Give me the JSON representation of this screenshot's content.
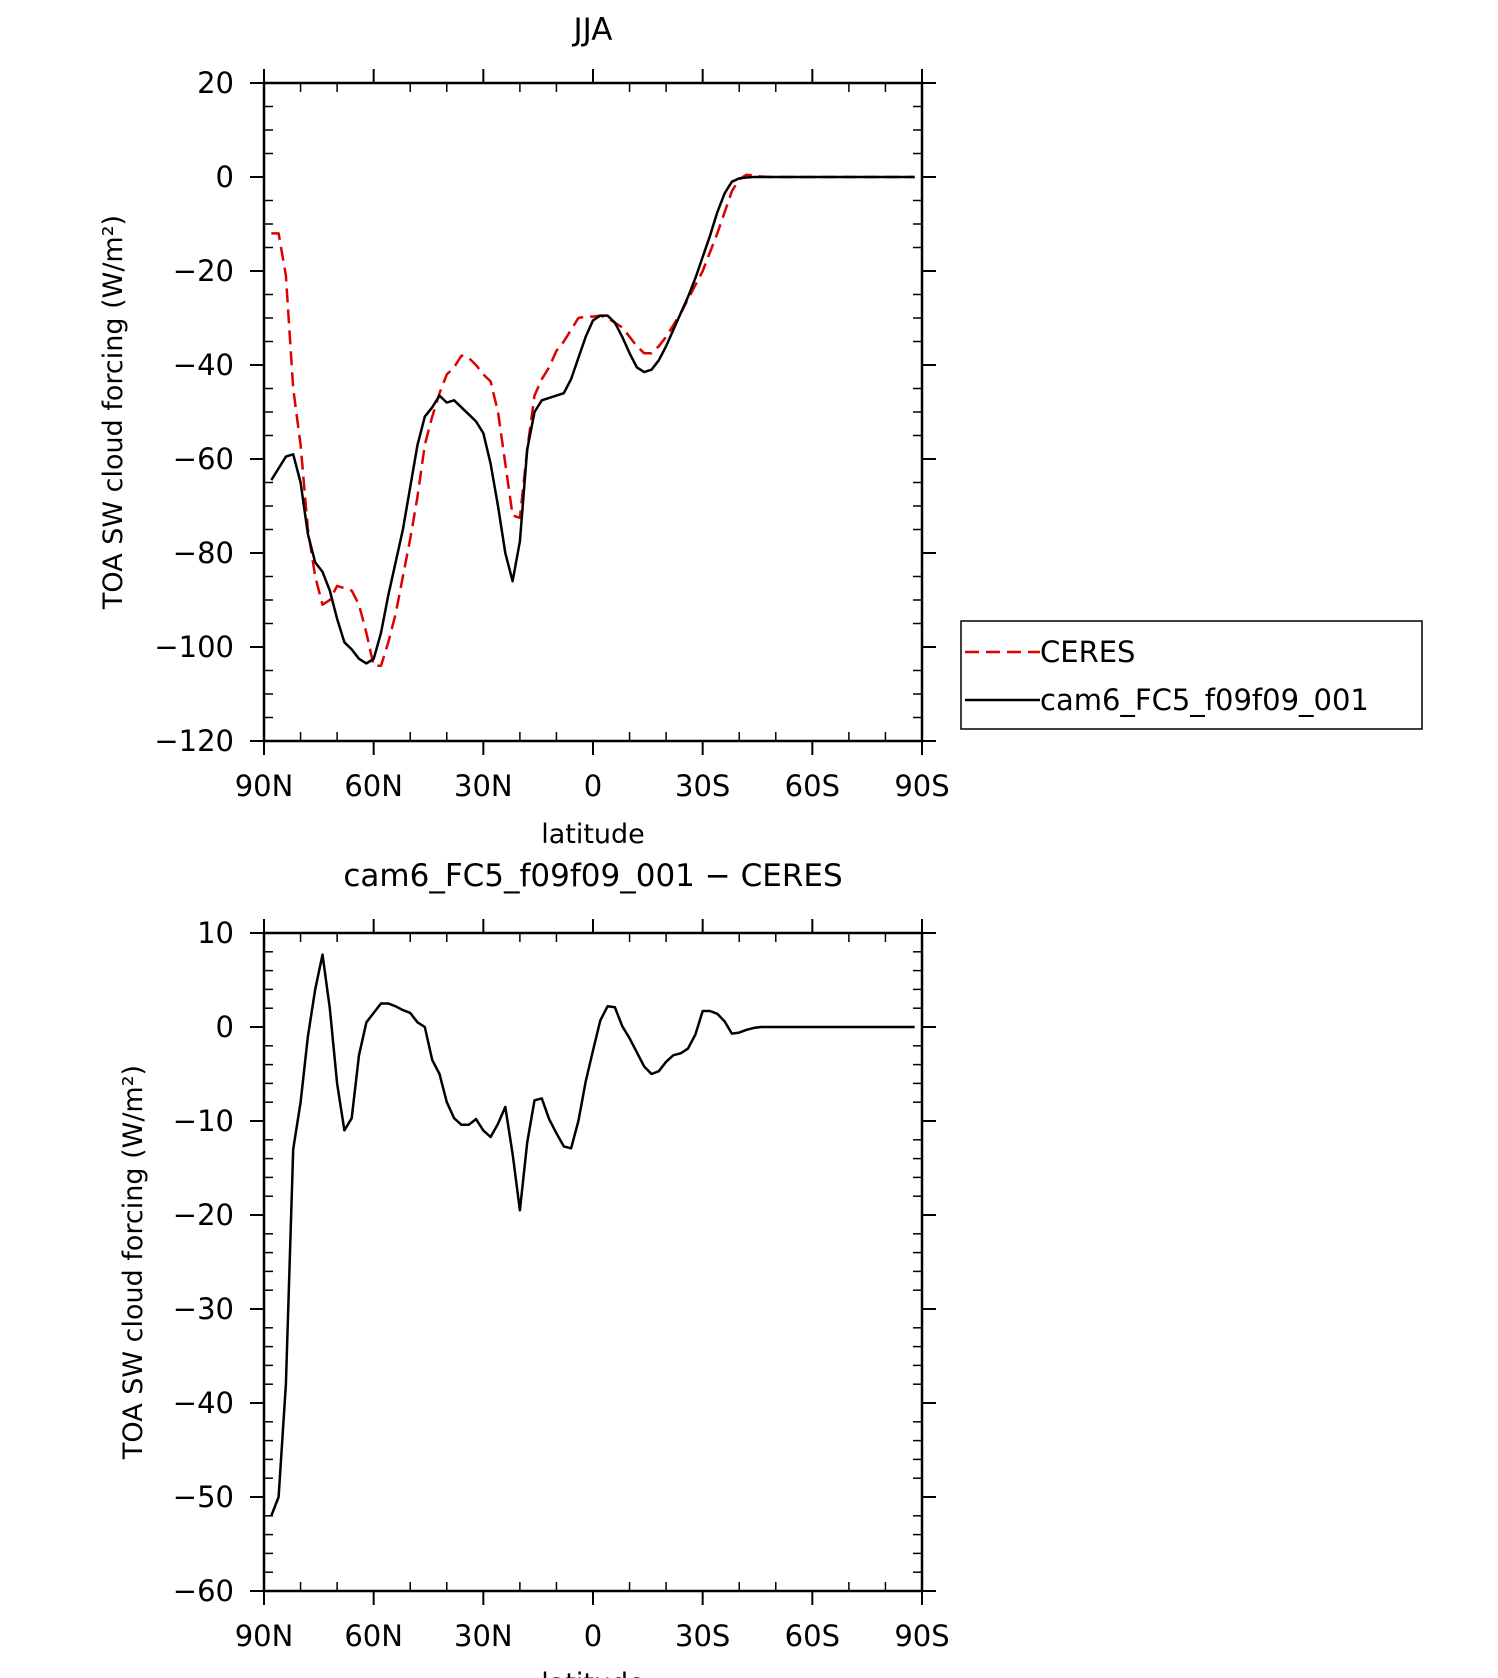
{
  "chart_data": [
    {
      "type": "line",
      "title": "JJA",
      "xlabel": "latitude",
      "ylabel": "TOA SW cloud forcing (W/m²)",
      "xlim": [
        90,
        -90
      ],
      "ylim": [
        -120,
        20
      ],
      "x_ticks": [
        90,
        60,
        30,
        0,
        -30,
        -60,
        -90
      ],
      "x_tick_labels": [
        "90N",
        "60N",
        "30N",
        "0",
        "30S",
        "60S",
        "90S"
      ],
      "y_ticks": [
        20,
        0,
        -20,
        -40,
        -60,
        -80,
        -100,
        -120
      ],
      "y_tick_labels": [
        "20",
        "0",
        "−20",
        "−40",
        "−60",
        "−80",
        "−100",
        "−120"
      ],
      "legend": {
        "position": "right",
        "entries": [
          "CERES",
          "cam6_FC5_f09f09_001"
        ]
      },
      "series": [
        {
          "name": "CERES",
          "color": "#dd0000",
          "dash": "dashed",
          "x": [
            88,
            86,
            84,
            82,
            80,
            78,
            76,
            74,
            72,
            70,
            68,
            66,
            64,
            62,
            60,
            58,
            56,
            54,
            52,
            50,
            48,
            46,
            44,
            42,
            40,
            38,
            36,
            34,
            32,
            30,
            28,
            26,
            24,
            22,
            20,
            18,
            16,
            14,
            12,
            10,
            8,
            6,
            4,
            2,
            0,
            -2,
            -4,
            -6,
            -8,
            -10,
            -12,
            -14,
            -16,
            -18,
            -20,
            -22,
            -24,
            -26,
            -28,
            -30,
            -32,
            -34,
            -36,
            -38,
            -40,
            -42,
            -44,
            -46,
            -48,
            -50,
            -52,
            -54,
            -56,
            -58,
            -60,
            -62,
            -64,
            -66,
            -68,
            -70,
            -72,
            -74,
            -76,
            -78,
            -80,
            -82,
            -84,
            -86,
            -88
          ],
          "y": [
            -12,
            -12,
            -21,
            -45,
            -57,
            -75,
            -85,
            -91,
            -90,
            -87,
            -87.5,
            -88,
            -91,
            -97,
            -104,
            -104,
            -99,
            -93,
            -85,
            -77,
            -68,
            -57,
            -51,
            -46,
            -42,
            -40.5,
            -38,
            -38.5,
            -40,
            -42,
            -43.5,
            -50,
            -61,
            -72,
            -72.5,
            -58,
            -46.5,
            -43,
            -40.5,
            -37,
            -35,
            -32.5,
            -30,
            -29.7,
            -29.7,
            -29.5,
            -30,
            -31,
            -32,
            -34,
            -36,
            -37.5,
            -37.5,
            -36,
            -34,
            -31.5,
            -29,
            -26,
            -23,
            -20,
            -16,
            -12,
            -7.5,
            -3,
            -0.5,
            0.5,
            0.3,
            0.1,
            0,
            0,
            0,
            0,
            0,
            0,
            0,
            0,
            0,
            0,
            0,
            0,
            0,
            0,
            0,
            0,
            0,
            0,
            0,
            0,
            0
          ]
        },
        {
          "name": "cam6_FC5_f09f09_001",
          "color": "#000000",
          "dash": "solid",
          "x": [
            88,
            86,
            84,
            82,
            80,
            78,
            76,
            74,
            72,
            70,
            68,
            66,
            64,
            62,
            60,
            58,
            56,
            54,
            52,
            50,
            48,
            46,
            44,
            42,
            40,
            38,
            36,
            34,
            32,
            30,
            28,
            26,
            24,
            22,
            20,
            18,
            16,
            14,
            12,
            10,
            8,
            6,
            4,
            2,
            0,
            -2,
            -4,
            -6,
            -8,
            -10,
            -12,
            -14,
            -16,
            -18,
            -20,
            -22,
            -24,
            -26,
            -28,
            -30,
            -32,
            -34,
            -36,
            -38,
            -40,
            -42,
            -44,
            -46,
            -48,
            -50,
            -52,
            -54,
            -56,
            -58,
            -60,
            -62,
            -64,
            -66,
            -68,
            -70,
            -72,
            -74,
            -76,
            -78,
            -80,
            -82,
            -84,
            -86,
            -88
          ],
          "y": [
            -64.5,
            -62,
            -59.5,
            -59,
            -65,
            -76,
            -82,
            -84,
            -88,
            -94,
            -99,
            -100.5,
            -102.5,
            -103.5,
            -102.5,
            -97,
            -89,
            -82,
            -75,
            -66,
            -57,
            -51,
            -49,
            -46.5,
            -48,
            -47.5,
            -49,
            -50.5,
            -52,
            -54.5,
            -61,
            -70,
            -80,
            -86,
            -77.5,
            -58,
            -50,
            -47.5,
            -47,
            -46.5,
            -46,
            -43,
            -38.5,
            -34,
            -30.5,
            -29.5,
            -29.5,
            -31,
            -34,
            -37.5,
            -40.5,
            -41.5,
            -41,
            -39,
            -36,
            -32.5,
            -29,
            -25.5,
            -21.5,
            -17,
            -12.5,
            -7.5,
            -3.5,
            -1,
            -0.3,
            -0.1,
            0,
            0,
            0,
            0,
            0,
            0,
            0,
            0,
            0,
            0,
            0,
            0,
            0,
            0,
            0,
            0,
            0,
            0,
            0,
            0,
            0,
            0,
            0
          ]
        }
      ]
    },
    {
      "type": "line",
      "title": "cam6_FC5_f09f09_001 − CERES",
      "xlabel": "latitude",
      "ylabel": "TOA SW cloud forcing (W/m²)",
      "xlim": [
        90,
        -90
      ],
      "ylim": [
        -60,
        10
      ],
      "x_ticks": [
        90,
        60,
        30,
        0,
        -30,
        -60,
        -90
      ],
      "x_tick_labels": [
        "90N",
        "60N",
        "30N",
        "0",
        "30S",
        "60S",
        "90S"
      ],
      "y_ticks": [
        10,
        0,
        -10,
        -20,
        -30,
        -40,
        -50,
        -60
      ],
      "y_tick_labels": [
        "10",
        "0",
        "−10",
        "−20",
        "−30",
        "−40",
        "−50",
        "−60"
      ],
      "series": [
        {
          "color": "#000000",
          "dash": "solid",
          "x": [
            88,
            86,
            84,
            82,
            80,
            78,
            76,
            74,
            72,
            70,
            68,
            66,
            64,
            62,
            60,
            58,
            56,
            54,
            52,
            50,
            48,
            46,
            44,
            42,
            40,
            38,
            36,
            34,
            32,
            30,
            28,
            26,
            24,
            22,
            20,
            18,
            16,
            14,
            12,
            10,
            8,
            6,
            4,
            2,
            0,
            -2,
            -4,
            -6,
            -8,
            -10,
            -12,
            -14,
            -16,
            -18,
            -20,
            -22,
            -24,
            -26,
            -28,
            -30,
            -32,
            -34,
            -36,
            -38,
            -40,
            -42,
            -44,
            -46,
            -48,
            -50,
            -52,
            -54,
            -56,
            -58,
            -60,
            -62,
            -64,
            -66,
            -68,
            -70,
            -72,
            -74,
            -76,
            -78,
            -80,
            -82,
            -84,
            -86,
            -88
          ],
          "y": [
            -52,
            -50,
            -38,
            -13,
            -8,
            -1,
            4,
            7.7,
            2,
            -6,
            -11,
            -9.7,
            -3,
            0.5,
            1.5,
            2.5,
            2.5,
            2.2,
            1.8,
            1.5,
            0.5,
            0,
            -3.5,
            -5,
            -8,
            -9.7,
            -10.4,
            -10.4,
            -9.8,
            -11,
            -11.7,
            -10.3,
            -8.5,
            -13.5,
            -19.5,
            -12.3,
            -7.8,
            -7.6,
            -9.8,
            -11.3,
            -12.7,
            -12.9,
            -10,
            -5.8,
            -2.5,
            0.7,
            2.2,
            2.1,
            0.1,
            -1.2,
            -2.7,
            -4.2,
            -5,
            -4.7,
            -3.7,
            -3,
            -2.8,
            -2.3,
            -0.8,
            1.7,
            1.7,
            1.4,
            0.6,
            -0.7,
            -0.6,
            -0.3,
            -0.1,
            0,
            0,
            0,
            0,
            0,
            0,
            0,
            0,
            0,
            0,
            0,
            0,
            0,
            0,
            0,
            0,
            0,
            0,
            0,
            0,
            0,
            0
          ]
        }
      ]
    }
  ]
}
